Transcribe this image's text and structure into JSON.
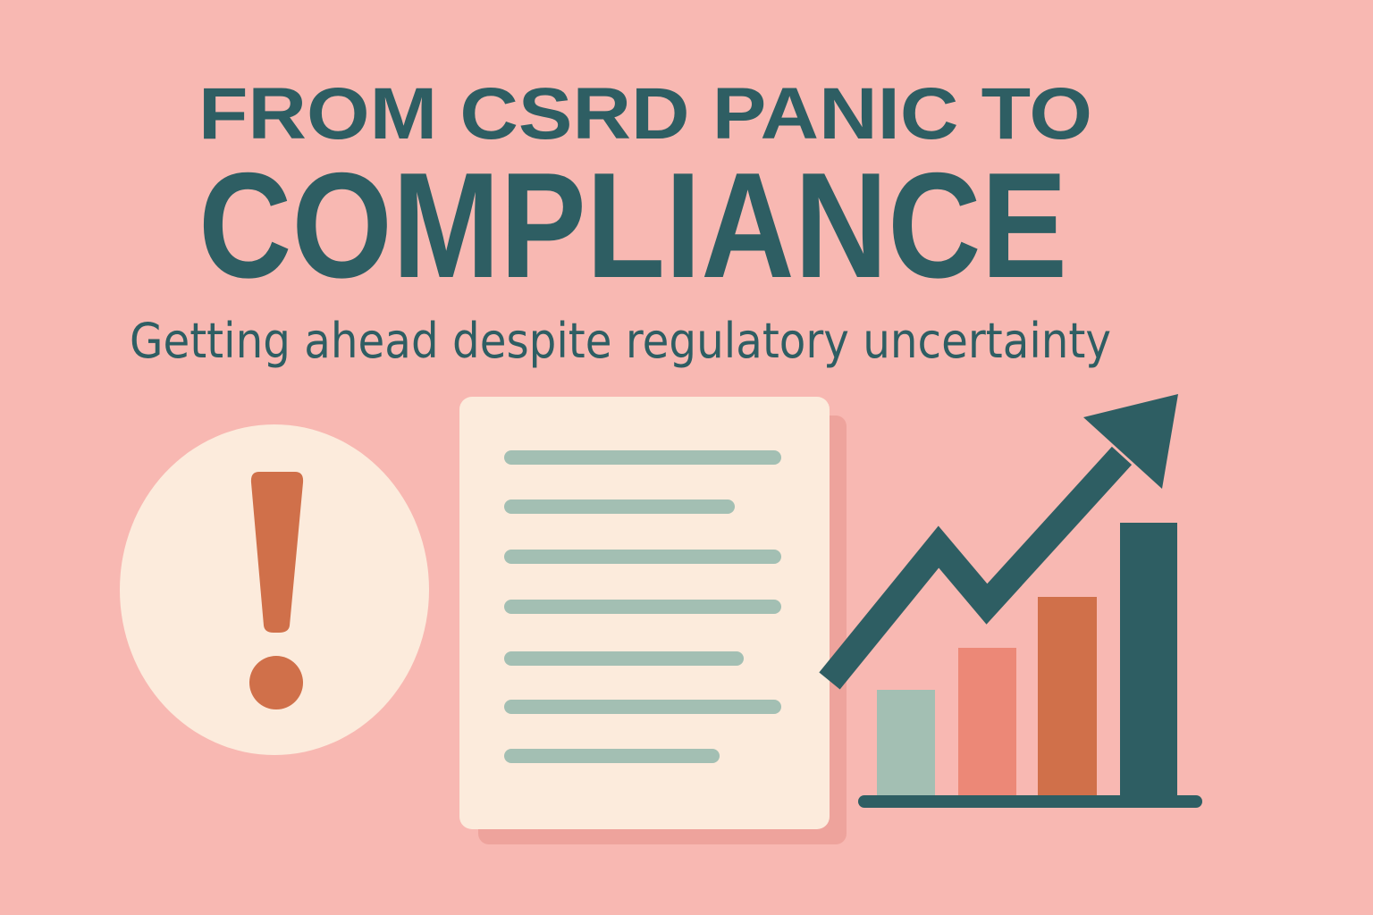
{
  "title": {
    "line1": "FROM CSRD PANIC TO",
    "line2": "COMPLIANCE"
  },
  "subtitle": "Getting ahead despite regulatory uncertainty"
}
